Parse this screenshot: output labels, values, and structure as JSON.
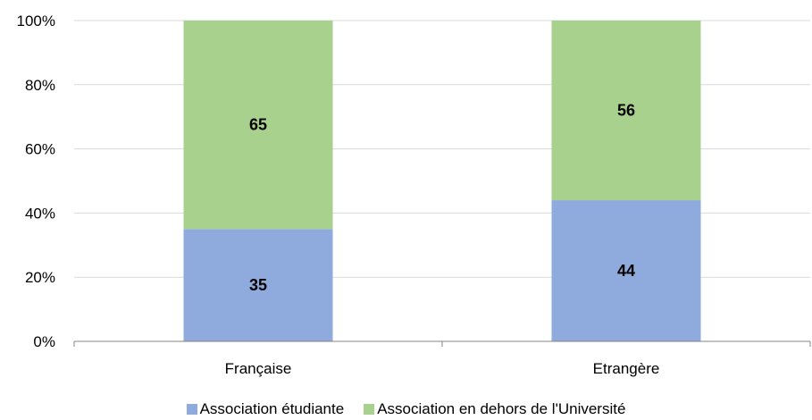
{
  "chart_data": {
    "type": "bar",
    "stacked": true,
    "categories": [
      "Française",
      "Etrangère"
    ],
    "series": [
      {
        "name": "Association étudiante",
        "values": [
          35,
          44
        ],
        "color": "#8faadc"
      },
      {
        "name": "Association en dehors de l'Université",
        "values": [
          65,
          56
        ],
        "color": "#a9d18e"
      }
    ],
    "ylim": [
      0,
      100
    ],
    "y_ticks": [
      "0%",
      "20%",
      "40%",
      "60%",
      "80%",
      "100%"
    ],
    "grid": true,
    "legend_position": "bottom"
  }
}
